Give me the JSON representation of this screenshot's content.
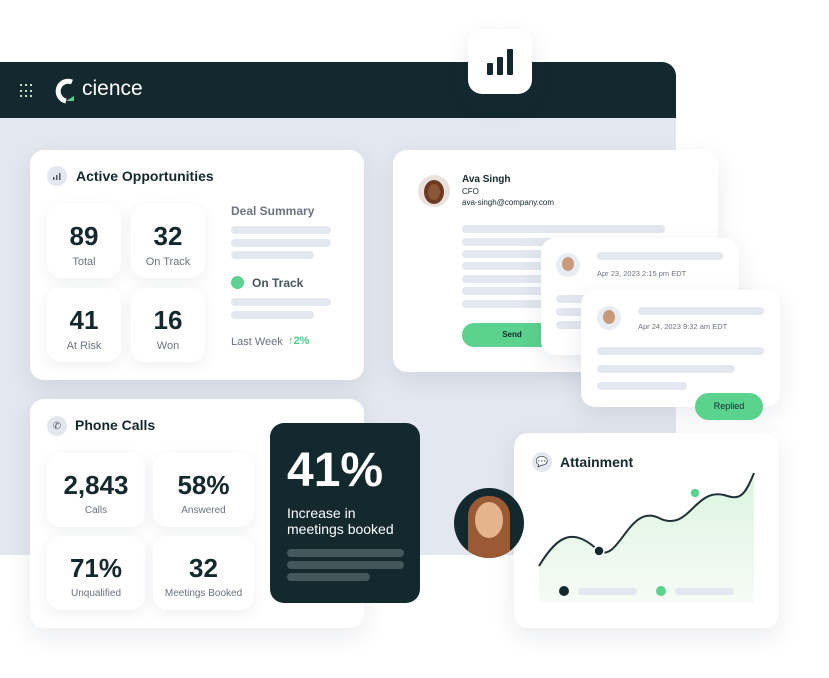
{
  "app": {
    "brand": "cience",
    "brand_color": "#13292e",
    "accent": "#5cd28f",
    "menu_icon": "grid-icon",
    "top_icon": "bar-chart-icon"
  },
  "opportunities": {
    "title": "Active Opportunities",
    "icon": "bar-chart-icon",
    "stats": [
      {
        "value": "89",
        "label": "Total"
      },
      {
        "value": "32",
        "label": "On Track"
      },
      {
        "value": "41",
        "label": "At Risk"
      },
      {
        "value": "16",
        "label": "Won"
      }
    ],
    "summary_title": "Deal Summary",
    "status": "On Track",
    "period": "Last Week",
    "change": "2%"
  },
  "email": {
    "name": "Ava Singh",
    "role": "CFO",
    "email": "ava-singh@company.com",
    "send_label": "Send"
  },
  "replies": [
    {
      "timestamp": "Apr 23, 2023 2:15 pm EDT"
    },
    {
      "timestamp": "Apr 24, 2023 9:32 am EDT",
      "status_label": "Replied"
    }
  ],
  "phone": {
    "title": "Phone Calls",
    "icon": "phone-icon",
    "stats": [
      {
        "value": "2,843",
        "label": "Calls"
      },
      {
        "value": "58%",
        "label": "Answered"
      },
      {
        "value": "71%",
        "label": "Unqualified"
      },
      {
        "value": "32",
        "label": "Meetings Booked"
      }
    ]
  },
  "highlight": {
    "value": "41%",
    "caption": "Increase in meetings booked"
  },
  "attainment": {
    "title": "Attainment",
    "icon": "chat-icon"
  }
}
